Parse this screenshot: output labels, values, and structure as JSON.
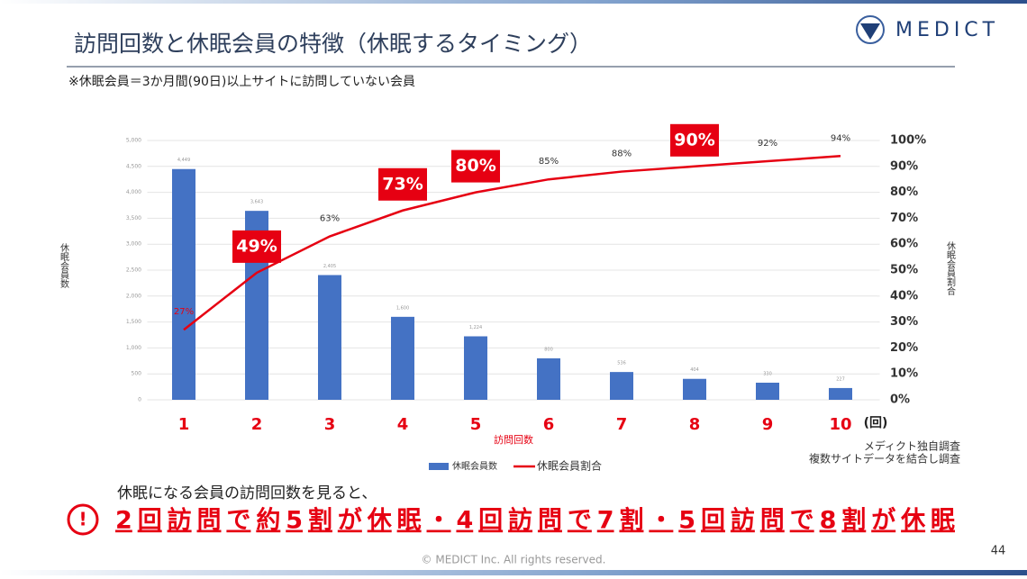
{
  "header": {
    "title": "訪問回数と休眠会員の特徴（休眠するタイミング）",
    "logo": "MEDICT"
  },
  "note": "※休眠会員＝3か月間(90日)以上サイトに訪問していない会員",
  "chart_data": {
    "type": "bar-line",
    "categories": [
      "1",
      "2",
      "3",
      "4",
      "5",
      "6",
      "7",
      "8",
      "9",
      "10"
    ],
    "x_unit": "(回)",
    "x_label": "訪問回数",
    "y_label": "休眠会員数",
    "y2_label": "休眠会員割合",
    "ylim": [
      0,
      5000
    ],
    "yticks": [
      0,
      500,
      {
        "value": 1000,
        "label": "1,000"
      },
      {
        "value": 1500,
        "label": "1,500"
      },
      {
        "value": 2000,
        "label": "2,000"
      },
      {
        "value": 2500,
        "label": "2,500"
      },
      {
        "value": 3000,
        "label": "3,000"
      },
      {
        "value": 3500,
        "label": "3,500"
      },
      {
        "value": 4000,
        "label": "4,000"
      },
      {
        "value": 4500,
        "label": "4,500"
      },
      {
        "value": 5000,
        "label": "5,000"
      }
    ],
    "y2lim": [
      0,
      100
    ],
    "y2ticks": [
      {
        "value": 0,
        "label": "0%"
      },
      {
        "value": 10,
        "label": "10%"
      },
      {
        "value": 20,
        "label": "20%"
      },
      {
        "value": 30,
        "label": "30%"
      },
      {
        "value": 40,
        "label": "40%"
      },
      {
        "value": 50,
        "label": "50%"
      },
      {
        "value": 60,
        "label": "60%"
      },
      {
        "value": 70,
        "label": "70%"
      },
      {
        "value": 80,
        "label": "80%"
      },
      {
        "value": 90,
        "label": "90%"
      },
      {
        "value": 100,
        "label": "100%"
      }
    ],
    "grid": true,
    "series": [
      {
        "name": "休眠会員数",
        "color": "#4472c4",
        "values": [
          4449,
          3643,
          2405,
          1600,
          1224,
          800,
          536,
          404,
          330,
          227
        ],
        "value_labels": [
          "4,449",
          "3,643",
          "2,405",
          "1,600",
          "1,224",
          "800",
          "536",
          "404",
          "330",
          "227"
        ]
      },
      {
        "name": "休眠会員割合",
        "color": "#e60012",
        "axis": "y2",
        "values": [
          27,
          49,
          63,
          73,
          80,
          85,
          88,
          90,
          92,
          94
        ],
        "value_labels": [
          "27%",
          "49%",
          "63%",
          "73%",
          "80%",
          "85%",
          "88%",
          "90%",
          "92%",
          "94%"
        ],
        "label_boxes": [
          false,
          true,
          false,
          true,
          true,
          false,
          false,
          true,
          false,
          false
        ]
      }
    ]
  },
  "source": [
    "メディクト独自調査",
    "複数サイトデータを結合し調査"
  ],
  "callout": {
    "intro": "休眠になる会員の訪問回数を見ると、",
    "headline": "2回訪問で約5割が休眠・4回訪問で7割・5回訪問で8割が休眠"
  },
  "footer": {
    "copyright": "© MEDICT Inc.  All rights reserved.",
    "page": 44
  }
}
